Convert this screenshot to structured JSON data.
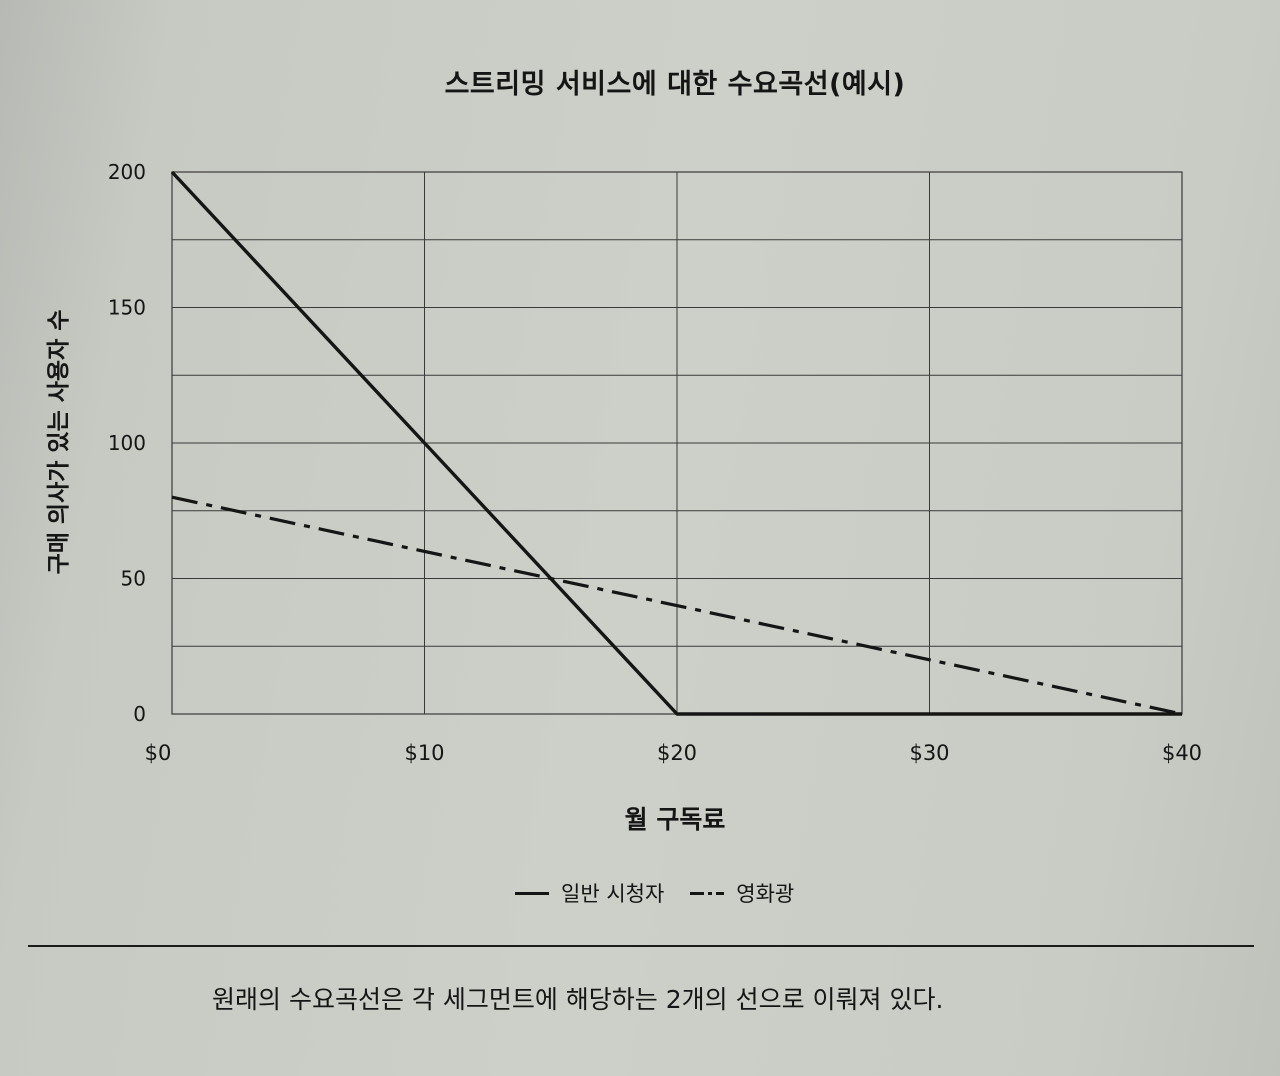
{
  "chart_data": {
    "type": "line",
    "title": "스트리밍 서비스에 대한 수요곡선(예시)",
    "xlabel": "월 구독료",
    "ylabel": "구매 의사가 있는 사용자 수",
    "x_ticks": [
      "$0",
      "$10",
      "$20",
      "$30",
      "$40"
    ],
    "y_ticks": [
      "0",
      "50",
      "100",
      "150",
      "200"
    ],
    "xlim": [
      0,
      40
    ],
    "ylim": [
      0,
      200
    ],
    "grid": true,
    "legend_position": "bottom",
    "series": [
      {
        "name": "일반 시청자",
        "style": "solid",
        "color": "#151515",
        "x": [
          0,
          20,
          40
        ],
        "y": [
          200,
          0,
          0
        ]
      },
      {
        "name": "영화광",
        "style": "dash-dot",
        "color": "#151515",
        "x": [
          0,
          40
        ],
        "y": [
          80,
          0
        ]
      }
    ]
  },
  "caption": "원래의 수요곡선은 각 세그먼트에 해당하는 2개의 선으로 이뤄져 있다."
}
